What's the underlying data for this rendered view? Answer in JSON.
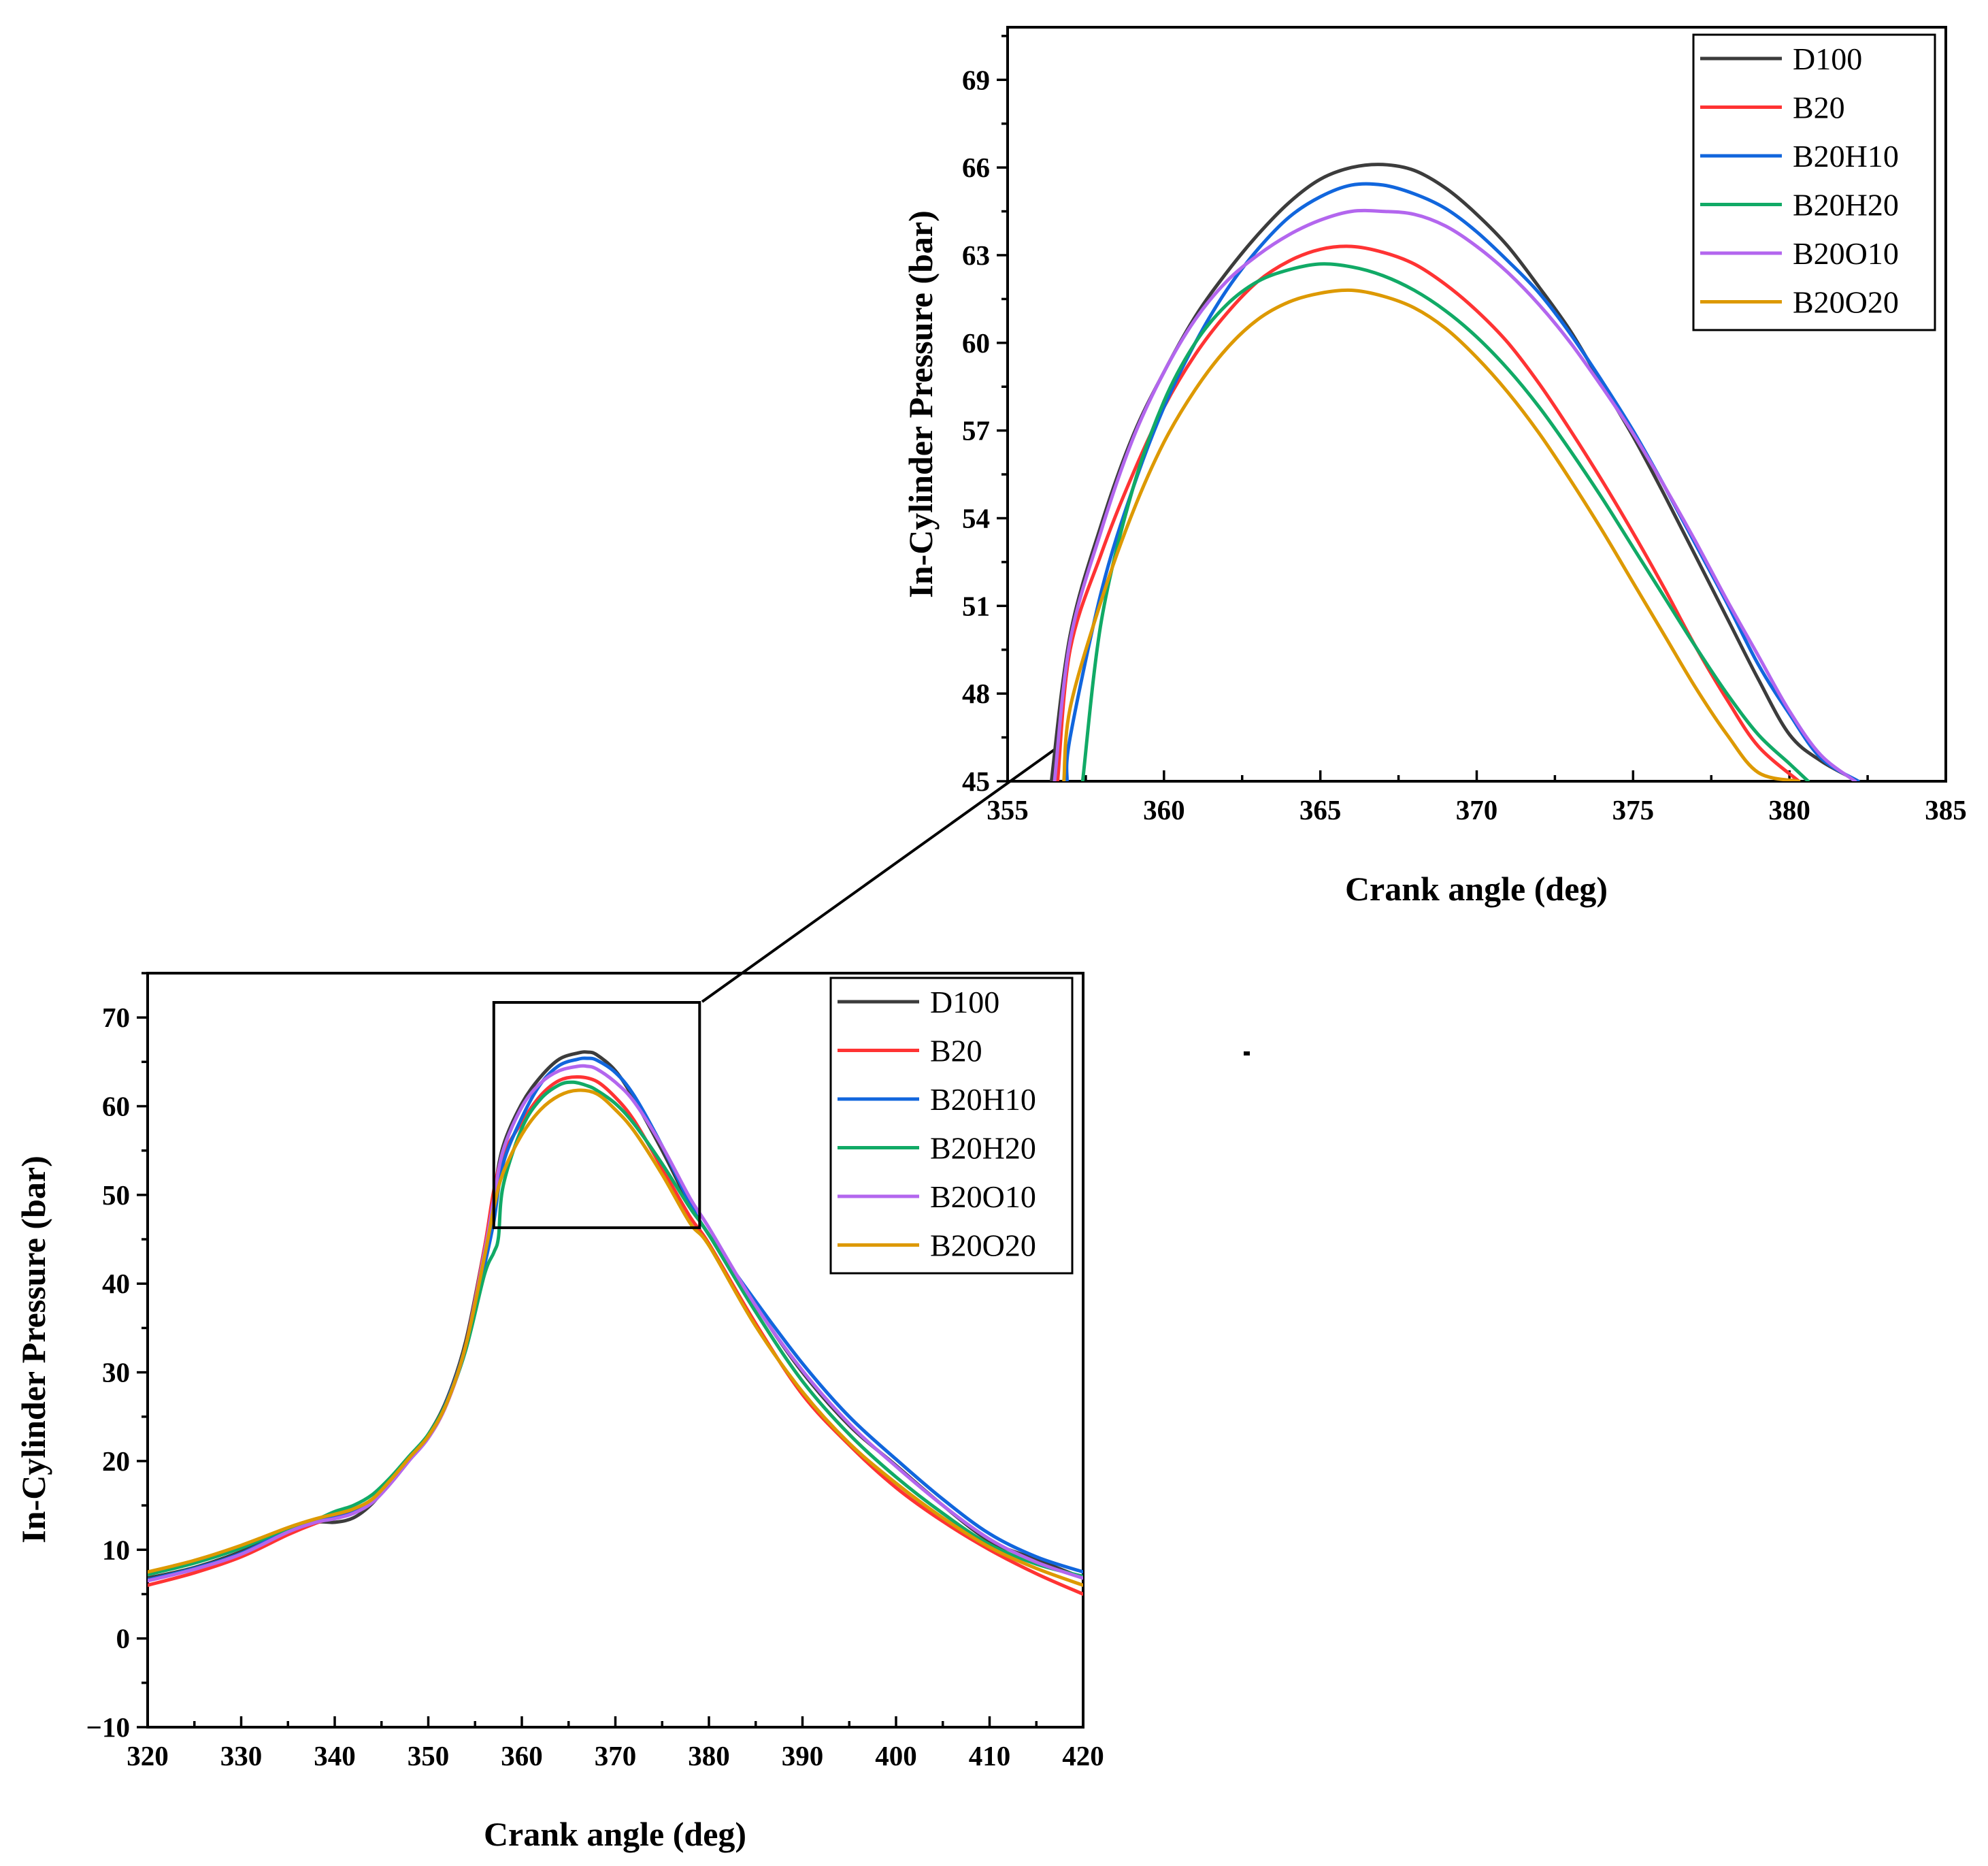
{
  "chart_data": [
    {
      "id": "main",
      "type": "line",
      "title": "",
      "xlabel": "Crank angle (deg)",
      "ylabel": "In-Cylinder Pressure (bar)",
      "xlim": [
        320,
        420
      ],
      "ylim": [
        -10,
        75
      ],
      "xticks": [
        320,
        330,
        340,
        350,
        360,
        370,
        380,
        390,
        400,
        410,
        420
      ],
      "xtick_labels": [
        "320",
        "330",
        "340",
        "350",
        "360",
        "370",
        "380",
        "390",
        "400",
        "410",
        "420"
      ],
      "yticks": [
        -10,
        0,
        10,
        20,
        30,
        40,
        50,
        60,
        70
      ],
      "ytick_labels": [
        "−10",
        "0",
        "10",
        "20",
        "30",
        "40",
        "50",
        "60",
        "70"
      ],
      "legend_position": "top-right",
      "zoom_region": {
        "x": [
          357,
          379
        ],
        "y": [
          46.3,
          71.7
        ]
      },
      "series": [
        {
          "name": "D100",
          "color": "#3c3c3c",
          "x": [
            320,
            325,
            330,
            335,
            338,
            340,
            342,
            344,
            346,
            348,
            350,
            352,
            354,
            356,
            357,
            358,
            360,
            362,
            364,
            366,
            367,
            368,
            370,
            372,
            375,
            378,
            380,
            385,
            390,
            395,
            400,
            405,
            410,
            415,
            420
          ],
          "y": [
            6.8,
            8.0,
            9.8,
            12.2,
            13.1,
            13.1,
            13.6,
            15.2,
            17.8,
            20.4,
            23.0,
            27.0,
            33.5,
            44.0,
            50.0,
            55.5,
            60.3,
            63.3,
            65.3,
            66.0,
            66.1,
            65.8,
            64.0,
            60.8,
            55.0,
            48.8,
            45.5,
            37.5,
            30.0,
            24.0,
            19.5,
            15.0,
            11.0,
            8.9,
            6.8
          ]
        },
        {
          "name": "B20",
          "color": "#ff3333",
          "x": [
            320,
            325,
            330,
            335,
            338,
            340,
            342,
            344,
            346,
            348,
            350,
            352,
            354,
            356,
            357,
            358,
            360,
            362,
            364,
            366,
            368,
            370,
            372,
            375,
            378,
            380,
            385,
            390,
            395,
            400,
            405,
            410,
            415,
            420
          ],
          "y": [
            6.0,
            7.4,
            9.2,
            11.7,
            13.0,
            13.7,
            14.3,
            15.6,
            17.6,
            20.2,
            22.6,
            26.5,
            33.0,
            44.0,
            50.5,
            54.5,
            58.2,
            61.2,
            62.9,
            63.3,
            62.8,
            61.0,
            58.4,
            53.0,
            47.5,
            44.5,
            35.5,
            27.5,
            21.8,
            17.0,
            13.2,
            10.0,
            7.3,
            5.0
          ]
        },
        {
          "name": "B20H10",
          "color": "#1166dd",
          "x": [
            320,
            325,
            330,
            335,
            338,
            340,
            342,
            344,
            346,
            348,
            350,
            352,
            354,
            356,
            357,
            358,
            360,
            362,
            364,
            366,
            367,
            368,
            370,
            372,
            375,
            378,
            380,
            385,
            390,
            395,
            400,
            405,
            410,
            415,
            420
          ],
          "y": [
            6.6,
            7.9,
            9.6,
            12.2,
            13.3,
            13.6,
            14.2,
            15.5,
            17.7,
            20.3,
            22.8,
            26.8,
            33.0,
            42.0,
            47.0,
            53.5,
            58.7,
            62.5,
            64.6,
            65.3,
            65.4,
            65.2,
            63.8,
            61.2,
            55.5,
            49.0,
            45.5,
            38.0,
            31.0,
            25.0,
            20.2,
            15.7,
            11.8,
            9.2,
            7.5
          ]
        },
        {
          "name": "B20H20",
          "color": "#11aa66",
          "x": [
            320,
            325,
            330,
            335,
            338,
            340,
            342,
            344,
            346,
            348,
            350,
            352,
            354,
            356,
            357,
            357.5,
            358,
            360,
            362,
            364,
            365.5,
            367,
            368,
            370,
            372,
            375,
            378,
            380,
            385,
            390,
            395,
            400,
            405,
            410,
            415,
            420
          ],
          "y": [
            7.2,
            8.5,
            10.2,
            12.4,
            13.4,
            14.3,
            15.0,
            16.2,
            18.2,
            20.6,
            23.0,
            26.7,
            32.5,
            41.0,
            43.5,
            45.2,
            51.0,
            57.5,
            60.8,
            62.4,
            62.7,
            62.3,
            61.8,
            60.3,
            58.0,
            53.5,
            48.5,
            45.5,
            36.8,
            29.0,
            23.0,
            18.2,
            14.1,
            10.6,
            8.4,
            7.0
          ]
        },
        {
          "name": "B20O10",
          "color": "#b366ee",
          "x": [
            320,
            325,
            330,
            335,
            338,
            340,
            342,
            344,
            346,
            348,
            350,
            352,
            354,
            356,
            357,
            358,
            360,
            362,
            364,
            366,
            367,
            368,
            370,
            372,
            375,
            378,
            380,
            385,
            390,
            395,
            400,
            405,
            410,
            415,
            420
          ],
          "y": [
            6.5,
            7.8,
            9.5,
            12.0,
            13.1,
            13.5,
            14.1,
            15.3,
            17.5,
            20.1,
            22.6,
            26.5,
            33.0,
            43.5,
            49.5,
            55.0,
            59.9,
            62.6,
            64.0,
            64.5,
            64.5,
            64.2,
            62.7,
            60.5,
            55.5,
            49.6,
            46.3,
            37.5,
            30.2,
            24.2,
            19.4,
            15.0,
            11.2,
            8.6,
            6.8
          ]
        },
        {
          "name": "B20O20",
          "color": "#dd9900",
          "x": [
            320,
            325,
            330,
            335,
            338,
            340,
            342,
            344,
            346,
            348,
            350,
            352,
            354,
            356,
            357,
            358,
            360,
            362,
            364,
            366,
            368,
            370,
            372,
            375,
            378,
            380,
            385,
            390,
            395,
            400,
            405,
            410,
            415,
            420
          ],
          "y": [
            7.5,
            8.8,
            10.5,
            12.5,
            13.5,
            14.0,
            14.6,
            15.7,
            17.9,
            20.4,
            22.8,
            26.6,
            33.0,
            43.0,
            48.5,
            52.5,
            56.8,
            59.6,
            61.2,
            61.8,
            61.4,
            59.6,
            57.2,
            52.3,
            46.8,
            44.3,
            35.2,
            27.8,
            22.0,
            17.5,
            13.6,
            10.3,
            7.9,
            6.0
          ]
        }
      ]
    },
    {
      "id": "zoom",
      "type": "line",
      "title": "",
      "xlabel": "Crank angle (deg)",
      "ylabel": "In-Cylinder Pressure (bar)",
      "xlim": [
        355,
        385
      ],
      "ylim": [
        45,
        70.8
      ],
      "xticks": [
        355,
        360,
        365,
        370,
        375,
        380,
        385
      ],
      "xtick_labels": [
        "355",
        "360",
        "365",
        "370",
        "375",
        "380",
        "385"
      ],
      "yticks": [
        45,
        48,
        51,
        54,
        57,
        60,
        63,
        66,
        69
      ],
      "ytick_labels": [
        "45",
        "48",
        "51",
        "54",
        "57",
        "60",
        "63",
        "66",
        "69"
      ],
      "legend_position": "top-right",
      "series": [
        {
          "name": "D100",
          "color": "#3c3c3c",
          "x": [
            356.4,
            357,
            358,
            359,
            360,
            361,
            362,
            363,
            364,
            365,
            366,
            367,
            368,
            369,
            370,
            371,
            372,
            373,
            374,
            375,
            376,
            377,
            378,
            379,
            380,
            381,
            382.2
          ],
          "y": [
            45,
            50.0,
            53.8,
            56.8,
            59.0,
            60.9,
            62.4,
            63.7,
            64.8,
            65.6,
            66.0,
            66.1,
            65.9,
            65.3,
            64.4,
            63.3,
            61.9,
            60.4,
            58.6,
            56.8,
            54.8,
            52.7,
            50.6,
            48.5,
            46.6,
            45.7,
            45
          ]
        },
        {
          "name": "B20",
          "color": "#ff3333",
          "x": [
            356.6,
            357,
            358,
            359,
            360,
            361,
            362,
            363,
            364,
            365,
            366,
            367,
            368,
            369,
            370,
            371,
            372,
            373,
            374,
            375,
            376,
            377,
            378,
            379,
            380.3
          ],
          "y": [
            45,
            49.5,
            52.8,
            55.5,
            57.8,
            59.6,
            61.0,
            62.1,
            62.8,
            63.2,
            63.3,
            63.1,
            62.7,
            62.0,
            61.1,
            60.0,
            58.6,
            57.0,
            55.3,
            53.5,
            51.6,
            49.6,
            47.8,
            46.2,
            45
          ]
        },
        {
          "name": "B20H10",
          "color": "#1166dd",
          "x": [
            356.9,
            357,
            358,
            359,
            360,
            361,
            362,
            363,
            364,
            365,
            366,
            367,
            368,
            369,
            370,
            371,
            372,
            373,
            374,
            375,
            376,
            377,
            378,
            379,
            380,
            381,
            382.2
          ],
          "y": [
            45,
            46.5,
            51.5,
            55.0,
            57.8,
            60.0,
            61.8,
            63.2,
            64.3,
            65.0,
            65.4,
            65.4,
            65.1,
            64.6,
            63.8,
            62.8,
            61.7,
            60.3,
            58.7,
            57.0,
            55.1,
            53.1,
            51.1,
            49.0,
            47.3,
            45.8,
            45
          ]
        },
        {
          "name": "B20H20",
          "color": "#11aa66",
          "x": [
            357.4,
            358,
            359,
            360,
            361,
            362,
            363,
            364,
            365,
            366,
            367,
            368,
            369,
            370,
            371,
            372,
            373,
            374,
            375,
            376,
            377,
            378,
            379,
            380,
            380.6
          ],
          "y": [
            45,
            50.5,
            55.0,
            58.0,
            60.0,
            61.3,
            62.1,
            62.5,
            62.7,
            62.6,
            62.3,
            61.8,
            61.1,
            60.2,
            59.1,
            57.8,
            56.3,
            54.7,
            53.0,
            51.3,
            49.6,
            48.0,
            46.6,
            45.6,
            45
          ]
        },
        {
          "name": "B20O10",
          "color": "#b366ee",
          "x": [
            356.5,
            357,
            358,
            359,
            360,
            361,
            362,
            363,
            364,
            365,
            366,
            367,
            368,
            369,
            370,
            371,
            372,
            373,
            374,
            375,
            376,
            377,
            378,
            379,
            380,
            381,
            382.1
          ],
          "y": [
            45,
            49.8,
            53.6,
            56.7,
            59.0,
            60.8,
            62.1,
            63.0,
            63.7,
            64.2,
            64.5,
            64.5,
            64.4,
            64.0,
            63.3,
            62.4,
            61.3,
            60.0,
            58.5,
            56.9,
            55.1,
            53.2,
            51.2,
            49.3,
            47.4,
            45.9,
            45
          ]
        },
        {
          "name": "B20O20",
          "color": "#dd9900",
          "x": [
            356.8,
            357,
            358,
            359,
            360,
            361,
            362,
            363,
            364,
            365,
            366,
            367,
            368,
            369,
            370,
            371,
            372,
            373,
            374,
            375,
            376,
            377,
            378,
            379,
            380.3
          ],
          "y": [
            45,
            47.5,
            51.2,
            54.2,
            56.6,
            58.4,
            59.8,
            60.8,
            61.4,
            61.7,
            61.8,
            61.6,
            61.2,
            60.5,
            59.5,
            58.3,
            56.9,
            55.3,
            53.6,
            51.8,
            50.0,
            48.2,
            46.6,
            45.3,
            45
          ]
        }
      ]
    }
  ]
}
